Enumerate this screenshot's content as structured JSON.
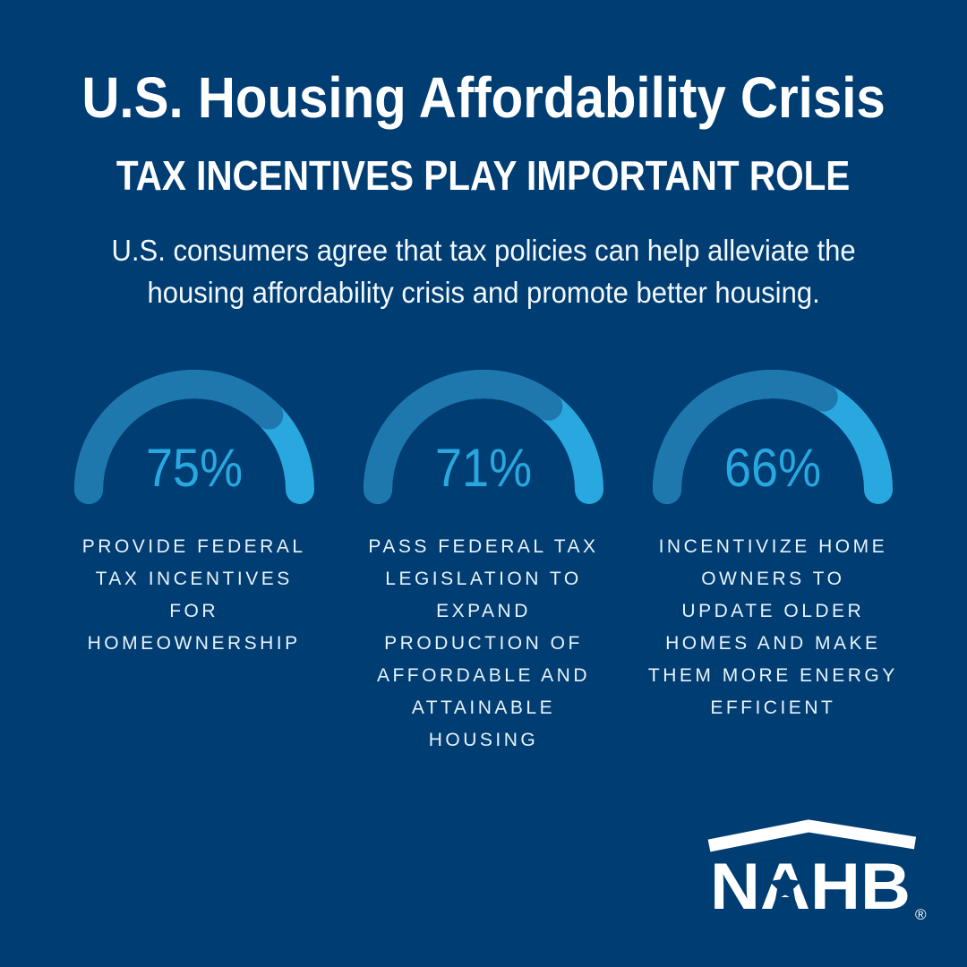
{
  "theme": {
    "background": "#003D72",
    "text_main": "#FFFFFF",
    "text_soft": "#F2F8FC",
    "text_label": "#E8F3FA",
    "arc_value_color": "#1E78AE",
    "arc_remainder_color": "#29A8E0",
    "percent_text_color": "#29A8E0",
    "logo_color": "#FFFFFF"
  },
  "header": {
    "title": "U.S. Housing Affordability Crisis",
    "subtitle": "TAX INCENTIVES PLAY IMPORTANT ROLE",
    "description": "U.S. consumers agree that tax policies can help alleviate the\nhousing affordability crisis and promote better housing."
  },
  "chart_data": {
    "type": "gauge",
    "unit": "%",
    "range": [
      0,
      100
    ],
    "legend": "none",
    "gauges": [
      {
        "value": 75,
        "display": "75%",
        "label": "PROVIDE FEDERAL\nTAX INCENTIVES\nFOR\nHOMEOWNERSHIP"
      },
      {
        "value": 71,
        "display": "71%",
        "label": "PASS FEDERAL TAX\nLEGISLATION TO\nEXPAND\nPRODUCTION OF\nAFFORDABLE AND\nATTAINABLE\nHOUSING"
      },
      {
        "value": 66,
        "display": "66%",
        "label": "INCENTIVIZE HOME\nOWNERS TO\nUPDATE OLDER\nHOMES AND MAKE\nTHEM MORE ENERGY\nEFFICIENT"
      }
    ]
  },
  "logo": {
    "text": "NAHB",
    "registered_mark": "®"
  }
}
